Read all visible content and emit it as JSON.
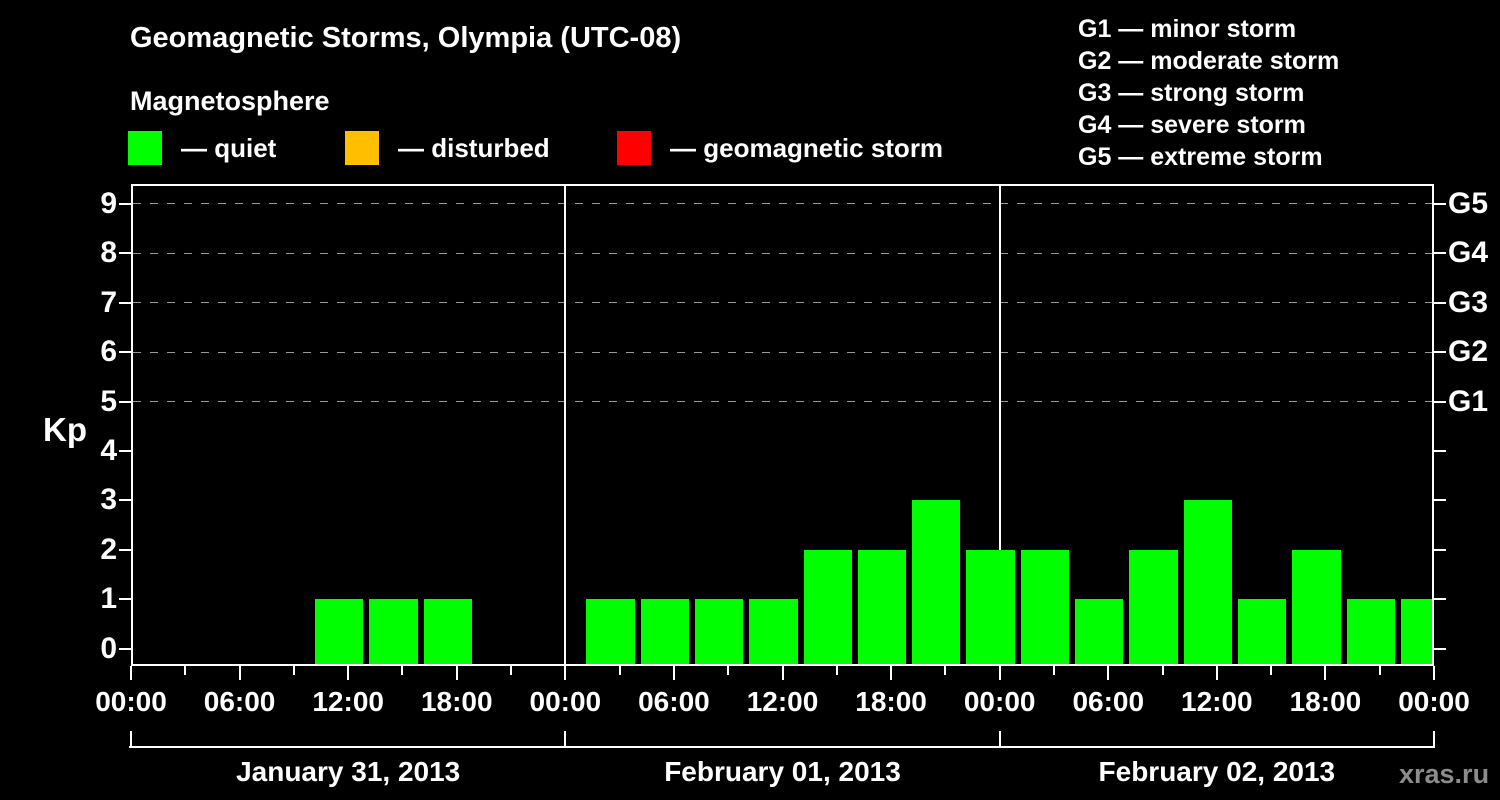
{
  "title": "Geomagnetic Storms, Olympia (UTC-08)",
  "subtitle": "Magnetosphere",
  "legend": {
    "items": [
      {
        "label": "— quiet",
        "color": "#00ff00"
      },
      {
        "label": "— disturbed",
        "color": "#ffbf00"
      },
      {
        "label": "— geomagnetic storm",
        "color": "#ff0000"
      }
    ]
  },
  "g_scale_legend": [
    "G1 — minor storm",
    "G2 — moderate storm",
    "G3 — strong storm",
    "G4 — severe storm",
    "G5 — extreme storm"
  ],
  "watermark": "xras.ru",
  "chart_data": {
    "type": "bar",
    "title": "Geomagnetic Storms, Olympia (UTC-08)",
    "subtitle": "Magnetosphere",
    "ylabel": "Kp",
    "ylim": [
      0,
      9
    ],
    "yticks": [
      0,
      1,
      2,
      3,
      4,
      5,
      6,
      7,
      8,
      9
    ],
    "grid_levels": [
      5,
      6,
      7,
      8,
      9
    ],
    "grid_style": "dashed-gray-horizontal",
    "right_axis": [
      {
        "kp": 5,
        "label": "G1"
      },
      {
        "kp": 6,
        "label": "G2"
      },
      {
        "kp": 7,
        "label": "G3"
      },
      {
        "kp": 8,
        "label": "G4"
      },
      {
        "kp": 9,
        "label": "G5"
      }
    ],
    "hours_total": 72,
    "bin_hours": 3,
    "x_tick_step_hours": 3,
    "x_label_step_hours": 6,
    "x_tick_labels": [
      "00:00",
      "06:00",
      "12:00",
      "18:00",
      "00:00",
      "06:00",
      "12:00",
      "18:00",
      "00:00",
      "06:00",
      "12:00",
      "18:00",
      "00:00"
    ],
    "bar_color": "#00ff00",
    "days": [
      {
        "date": "January 31, 2013",
        "bars": [
          {
            "start_hour": 10,
            "kp": 1
          },
          {
            "start_hour": 13,
            "kp": 1
          },
          {
            "start_hour": 16,
            "kp": 1
          }
        ]
      },
      {
        "date": "February 01, 2013",
        "bars": [
          {
            "start_hour": 1,
            "kp": 1
          },
          {
            "start_hour": 4,
            "kp": 1
          },
          {
            "start_hour": 7,
            "kp": 1
          },
          {
            "start_hour": 10,
            "kp": 1
          },
          {
            "start_hour": 13,
            "kp": 2
          },
          {
            "start_hour": 16,
            "kp": 2
          },
          {
            "start_hour": 19,
            "kp": 3
          },
          {
            "start_hour": 22,
            "kp": 2
          }
        ]
      },
      {
        "date": "February 02, 2013",
        "bars": [
          {
            "start_hour": 1,
            "kp": 2
          },
          {
            "start_hour": 4,
            "kp": 1
          },
          {
            "start_hour": 7,
            "kp": 2
          },
          {
            "start_hour": 10,
            "kp": 3
          },
          {
            "start_hour": 13,
            "kp": 1
          },
          {
            "start_hour": 16,
            "kp": 2
          },
          {
            "start_hour": 19,
            "kp": 1
          },
          {
            "start_hour": 22,
            "kp": 1
          }
        ]
      }
    ]
  }
}
